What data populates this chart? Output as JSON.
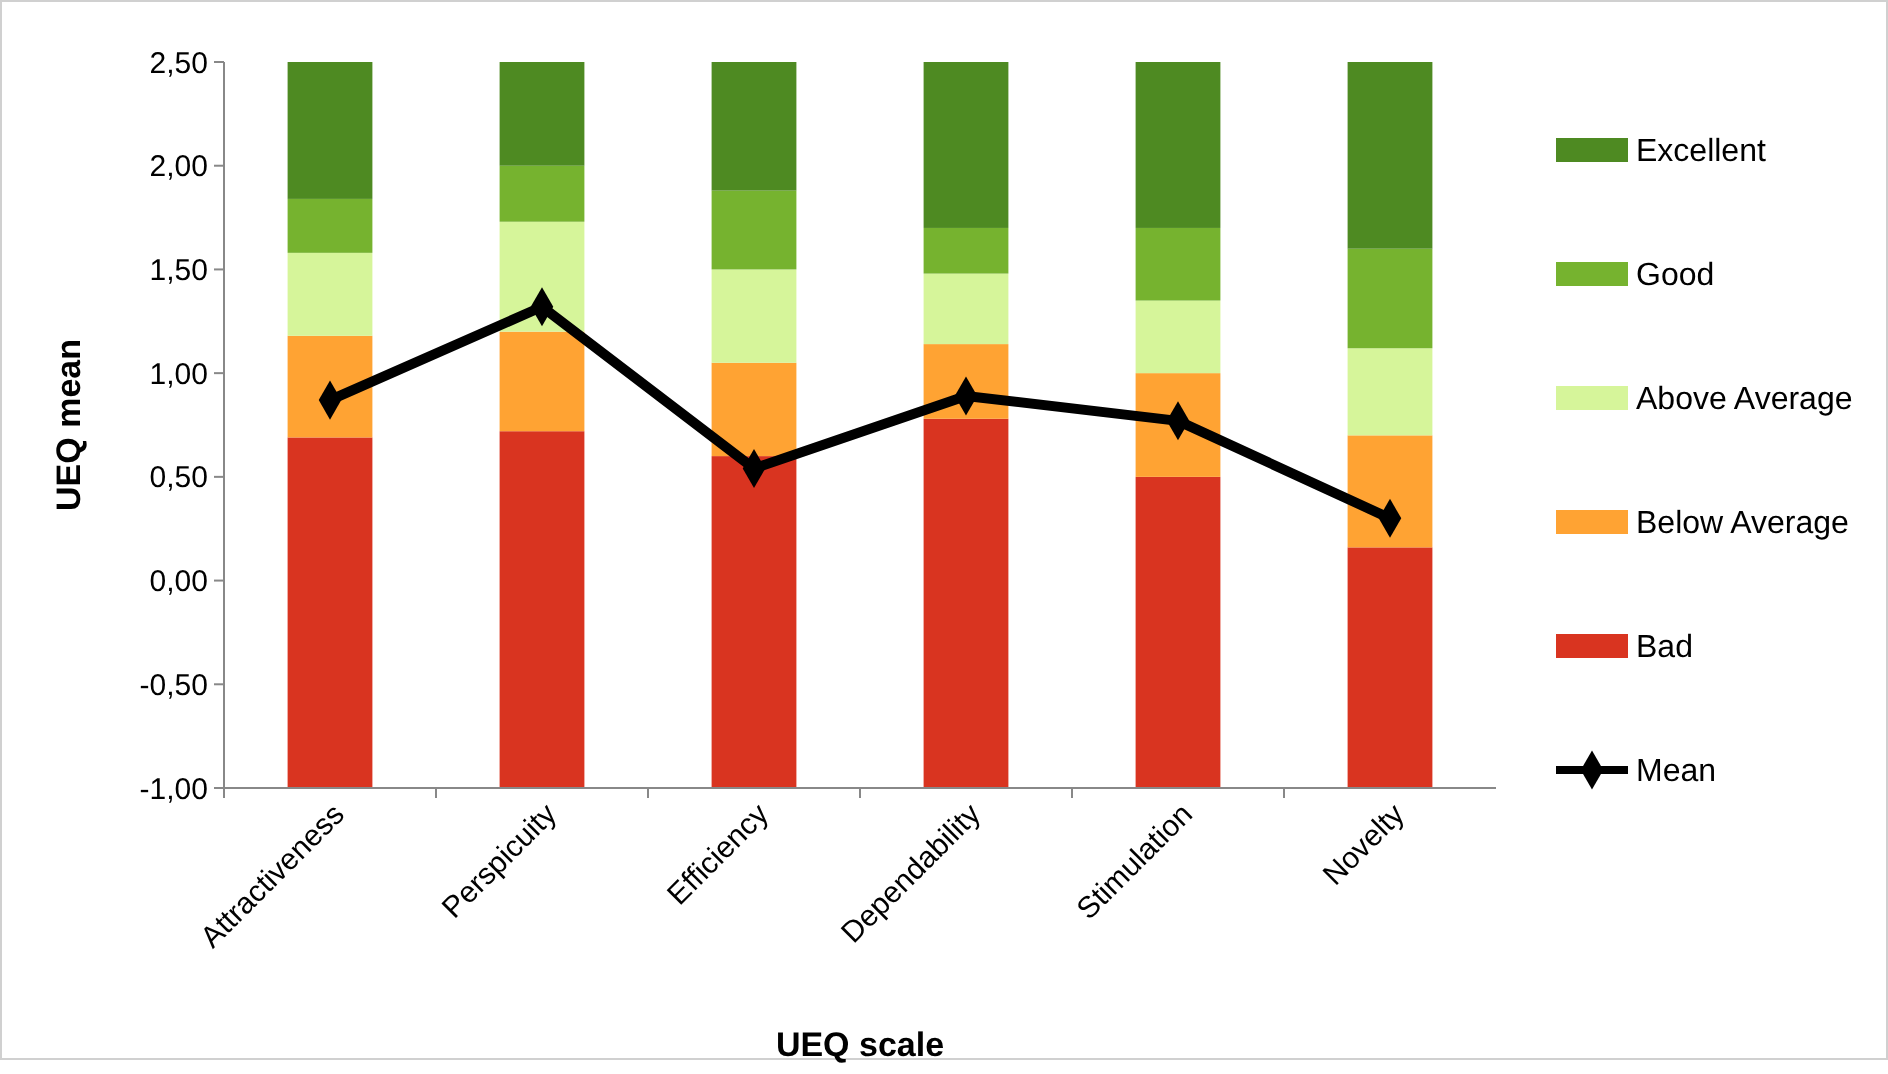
{
  "chart_data": {
    "type": "bar",
    "xlabel": "UEQ scale",
    "ylabel": "UEQ mean",
    "categories": [
      "Attractiveness",
      "Perspicuity",
      "Efficiency",
      "Dependability",
      "Stimulation",
      "Novelty"
    ],
    "series": [
      {
        "name": "Bad",
        "color": "#d93420",
        "base": [
          -1,
          -1,
          -1,
          -1,
          -1,
          -1
        ],
        "values": [
          1.69,
          1.72,
          1.6,
          1.78,
          1.5,
          1.16
        ]
      },
      {
        "name": "Below Average",
        "color": "#ffa333",
        "base": [
          0.69,
          0.72,
          0.6,
          0.78,
          0.5,
          0.16
        ],
        "values": [
          0.49,
          0.48,
          0.45,
          0.36,
          0.5,
          0.54
        ]
      },
      {
        "name": "Above Average",
        "color": "#d6f59a",
        "base": [
          1.18,
          1.2,
          1.05,
          1.14,
          1,
          0.7
        ],
        "values": [
          0.4,
          0.53,
          0.45,
          0.34,
          0.35,
          0.42
        ]
      },
      {
        "name": "Good",
        "color": "#76b32f",
        "base": [
          1.58,
          1.73,
          1.5,
          1.48,
          1.35,
          1.12
        ],
        "values": [
          0.26,
          0.27,
          0.38,
          0.22,
          0.35,
          0.48
        ]
      },
      {
        "name": "Excellent",
        "color": "#4e8a22",
        "base": [
          1.84,
          2,
          1.88,
          1.7,
          1.7,
          1.6
        ],
        "values": [
          0.66,
          0.5,
          0.62,
          0.8,
          0.8,
          0.9
        ]
      },
      {
        "name": "Mean",
        "type": "line",
        "color": "#000000",
        "marker": "diamond",
        "values": [
          0.87,
          1.32,
          0.54,
          0.89,
          0.77,
          0.3
        ]
      }
    ],
    "ylim": [
      -1,
      2.5
    ],
    "yticks": [
      {
        "value": -1,
        "label": "-1,00"
      },
      {
        "value": -0.5,
        "label": "-0,50"
      },
      {
        "value": 0,
        "label": "0,00"
      },
      {
        "value": 0.5,
        "label": "0,50"
      },
      {
        "value": 1,
        "label": "1,00"
      },
      {
        "value": 1.5,
        "label": "1,50"
      },
      {
        "value": 2,
        "label": "2,00"
      },
      {
        "value": 2.5,
        "label": "2,50"
      }
    ],
    "legend": "right"
  }
}
